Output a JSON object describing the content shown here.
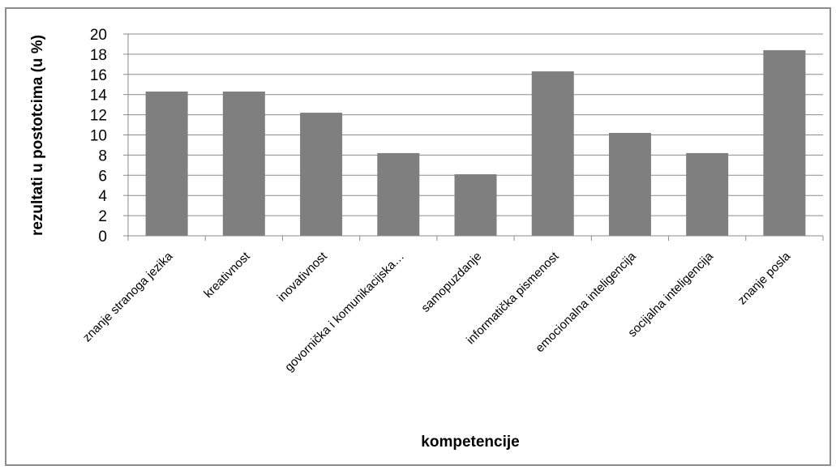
{
  "chart_data": {
    "type": "bar",
    "categories": [
      "znanje stranoga jezika",
      "kreativnost",
      "inovativnost",
      "govornička i komunikacijska…",
      "samopuzdanje",
      "informatička pismenost",
      "emocionalna inteligencija",
      "socijalna inteligencija",
      "znanje posla"
    ],
    "values": [
      14.3,
      14.3,
      12.2,
      8.2,
      6.1,
      16.3,
      10.2,
      8.2,
      18.4
    ],
    "xlabel": "kompetencije",
    "ylabel": "rezultati u postotcima (u %)",
    "ylim": [
      0,
      20
    ],
    "yticks": [
      "0",
      "2",
      "4",
      "6",
      "8",
      "10",
      "12",
      "14",
      "16",
      "18",
      "20"
    ],
    "grid": true,
    "bar_color": "#7f7f7f",
    "gridline_color": "#8c8c8c"
  }
}
